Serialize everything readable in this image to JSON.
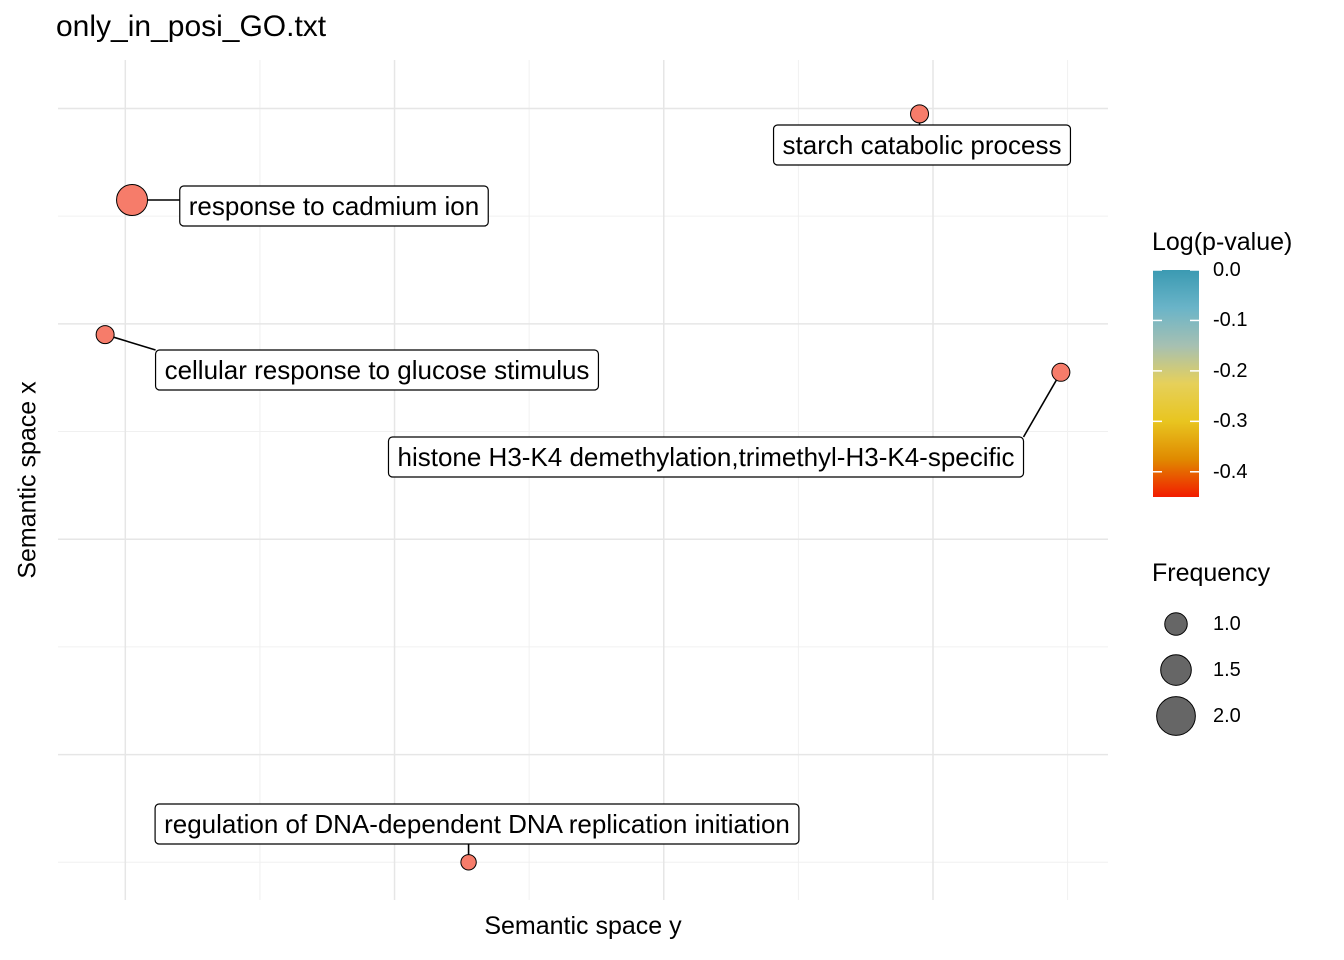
{
  "chart_data": {
    "type": "scatter",
    "title": "only_in_posi_GO.txt",
    "xlabel": "Semantic space y",
    "ylabel": "Semantic space x",
    "xlim": [
      -0.5,
      7.3
    ],
    "ylim": [
      -5.35,
      2.45
    ],
    "grid": true,
    "axis_ticks_labels_shown": false,
    "points": [
      {
        "label": "starch catabolic process",
        "x": 5.9,
        "y": 1.95,
        "log_pvalue": -0.43,
        "frequency": 1.0
      },
      {
        "label": "response to cadmium ion",
        "x": 0.05,
        "y": 1.15,
        "log_pvalue": -0.43,
        "frequency": 2.0
      },
      {
        "label": "cellular response to glucose stimulus",
        "x": -0.15,
        "y": -0.1,
        "log_pvalue": -0.43,
        "frequency": 1.0
      },
      {
        "label": "histone H3-K4 demethylation,trimethyl-H3-K4-specific",
        "x": 6.95,
        "y": -0.45,
        "log_pvalue": -0.43,
        "frequency": 1.0
      },
      {
        "label": "regulation of DNA-dependent DNA replication initiation",
        "x": 2.55,
        "y": -5.0,
        "log_pvalue": -0.43,
        "frequency": 0.8
      }
    ],
    "legend": {
      "placement": "right",
      "color": {
        "title": "Log(p-value)",
        "ticks": [
          "0.0",
          "-0.1",
          "-0.2",
          "-0.3",
          "-0.4"
        ],
        "range": [
          -0.45,
          0.0
        ],
        "colors": [
          "#f21c00",
          "#e08a00",
          "#e8c520",
          "#e6d05a",
          "#a6c0b2",
          "#6ab4c8",
          "#3b9ab2"
        ]
      },
      "size": {
        "title": "Frequency",
        "values": [
          1.0,
          1.5,
          2.0
        ],
        "labels": [
          "1.0",
          "1.5",
          "2.0"
        ],
        "fill": "#666666"
      }
    },
    "point_fill": "#f67c6a"
  }
}
